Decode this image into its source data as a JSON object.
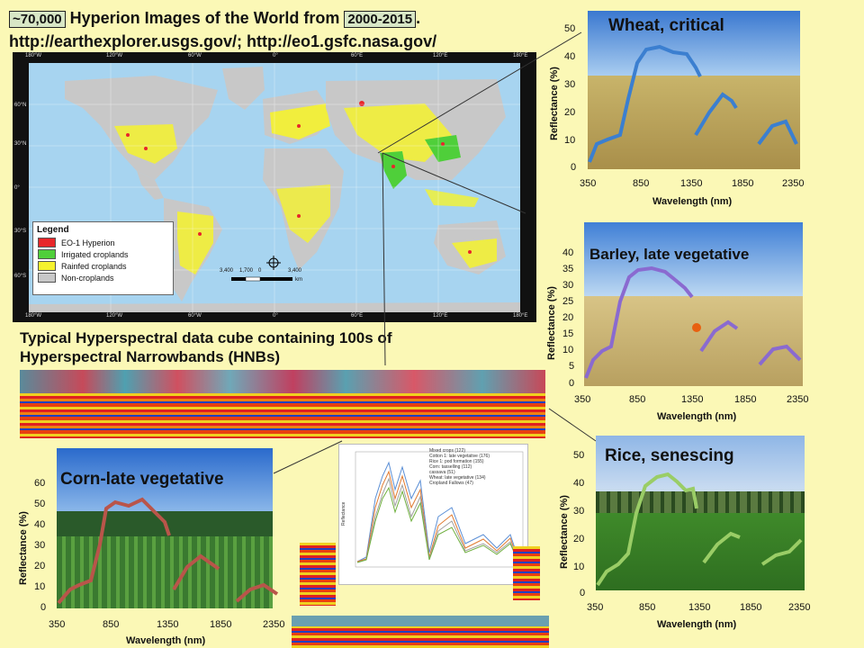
{
  "header": {
    "count_label": "~70,000",
    "title_text": "Hyperion Images of the World from",
    "years_label": "2000-2015",
    "period": ".",
    "urls": "http://earthexplorer.usgs.gov/; http://eo1.gsfc.nasa.gov/"
  },
  "map": {
    "top_ticks": [
      "180°W",
      "120°W",
      "60°W",
      "0°",
      "60°E",
      "120°E",
      "180°E"
    ],
    "bottom_ticks": [
      "180°W",
      "120°W",
      "60°W",
      "0°",
      "60°E",
      "120°E",
      "180°E"
    ],
    "left_ticks": [
      "60°N",
      "30°N",
      "0°",
      "30°S",
      "60°S"
    ],
    "scale_labels": [
      "3,400",
      "1,700",
      "0",
      "3,400"
    ],
    "scale_unit": "km",
    "legend": {
      "title": "Legend",
      "items": [
        {
          "label": "EO-1 Hyperion",
          "color": "#e8262a"
        },
        {
          "label": "Irrigated croplands",
          "color": "#4fcf3a"
        },
        {
          "label": "Rainfed croplands",
          "color": "#f5f22e"
        },
        {
          "label": "Non-croplands",
          "color": "#c8c8c8"
        }
      ]
    }
  },
  "cube_caption": {
    "line1": "Typical Hyperspectral data cube containing 100s of",
    "line2": "Hyperspectral Narrowbands (HNBs)"
  },
  "plots": {
    "wheat": {
      "title": "Wheat, critical",
      "ylabel": "Reflectance (%)",
      "xlabel": "Wavelength (nm)",
      "yticks": [
        "50",
        "40",
        "30",
        "20",
        "10",
        "0"
      ],
      "xticks": [
        "350",
        "850",
        "1350",
        "1850",
        "2350"
      ],
      "color": "#3b7fd0"
    },
    "barley": {
      "title": "Barley, late vegetative",
      "ylabel": "Reflectance (%)",
      "xlabel": "Wavelength (nm)",
      "yticks": [
        "40",
        "35",
        "30",
        "25",
        "20",
        "15",
        "10",
        "5",
        "0"
      ],
      "xticks": [
        "350",
        "850",
        "1350",
        "1850",
        "2350"
      ],
      "color": "#8a6ad0"
    },
    "corn": {
      "title": "Corn-late vegetative",
      "ylabel": "Reflectance (%)",
      "xlabel": "Wavelength (nm)",
      "yticks": [
        "60",
        "50",
        "40",
        "30",
        "20",
        "10",
        "0"
      ],
      "xticks": [
        "350",
        "850",
        "1350",
        "1850",
        "2350"
      ],
      "color": "#b9554a"
    },
    "rice": {
      "title": "Rice, senescing",
      "ylabel": "Reflectance (%)",
      "xlabel": "Wavelength (nm)",
      "yticks": [
        "50",
        "40",
        "30",
        "20",
        "10",
        "0"
      ],
      "xticks": [
        "350",
        "850",
        "1350",
        "1850",
        "2350"
      ],
      "color": "#9acd66"
    }
  },
  "small_chart": {
    "legend": [
      "Mixed crops (122)",
      "Cotton 1: late vegetative (176)",
      "Rice 1: pod formation (155)",
      "Corn: tasselling (112)",
      "cassava (51)",
      "Wheat: late vegetative (134)",
      "Cropland Fallows (47)"
    ],
    "colors": [
      "#5b8fd6",
      "#e07a30",
      "#a0a0a0",
      "#e8c040",
      "#4060b0",
      "#70b040",
      "#305070"
    ],
    "ylabel": "Reflectance"
  }
}
